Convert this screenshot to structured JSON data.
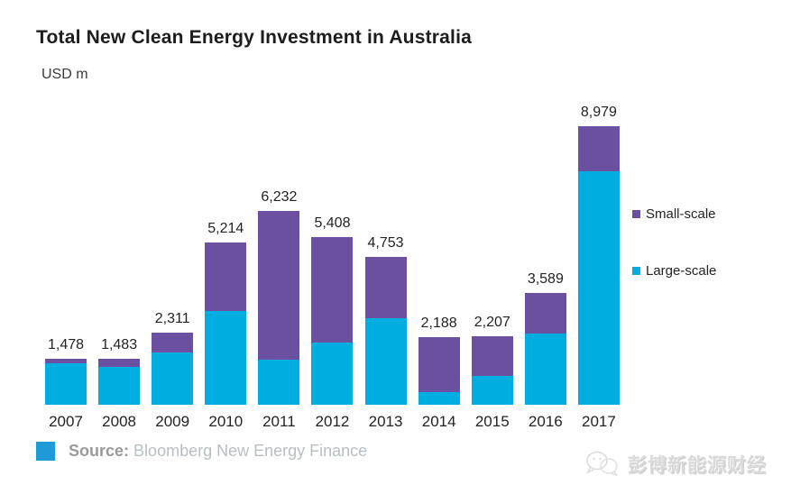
{
  "title": "Total New Clean Energy Investment in Australia",
  "unit_label": "USD m",
  "legend": {
    "items": [
      {
        "label": "Small-scale",
        "color": "#6B50A1"
      },
      {
        "label": "Large-scale",
        "color": "#00ADE0"
      }
    ]
  },
  "source": {
    "label": "Source:",
    "text": "Bloomberg New Energy Finance",
    "square_color": "#1E9AD6"
  },
  "watermark": {
    "text": "彭博新能源财经",
    "logo": "wechat-logo"
  },
  "chart_data": {
    "type": "bar",
    "stacked": true,
    "title": "Total New Clean Energy Investment in Australia",
    "xlabel": "",
    "ylabel": "USD m",
    "ylim": [
      0,
      9000
    ],
    "grid": false,
    "legend_position": "right",
    "categories": [
      "2007",
      "2008",
      "2009",
      "2010",
      "2011",
      "2012",
      "2013",
      "2014",
      "2015",
      "2016",
      "2017"
    ],
    "totals": [
      1478,
      1483,
      2311,
      5214,
      6232,
      5408,
      4753,
      2188,
      2207,
      3589,
      8979
    ],
    "total_labels": [
      "1,478",
      "1,483",
      "2,311",
      "5,214",
      "6,232",
      "5,408",
      "4,753",
      "2,188",
      "2,207",
      "3,589",
      "8,979"
    ],
    "series": [
      {
        "name": "Large-scale",
        "color": "#00ADE0",
        "values": [
          1335,
          1230,
          1670,
          3025,
          1448,
          2000,
          2775,
          400,
          915,
          2293,
          7528
        ]
      },
      {
        "name": "Small-scale",
        "color": "#6B50A1",
        "values": [
          143,
          253,
          641,
          2189,
          4784,
          3408,
          1978,
          1788,
          1292,
          1296,
          1451
        ]
      }
    ]
  }
}
